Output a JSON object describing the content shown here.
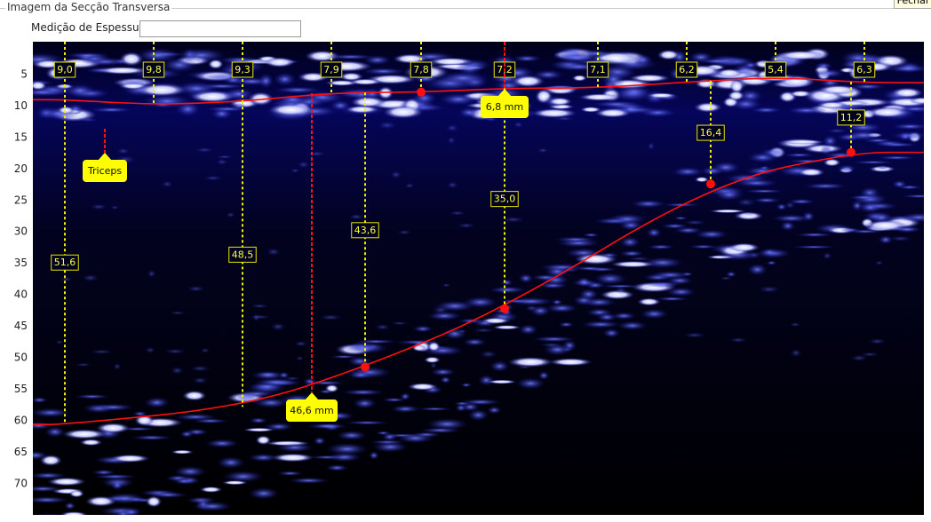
{
  "window": {
    "title": "Imagem da Secção Transversa",
    "close_button": "Fechar"
  },
  "form": {
    "label": "Medição de Espessura"
  },
  "image": {
    "y_axis": {
      "ticks": [
        5,
        10,
        15,
        20,
        25,
        30,
        35,
        40,
        45,
        50,
        55,
        60,
        65,
        70
      ]
    },
    "top_measurements": [
      {
        "value": 9.0,
        "label": "9,0"
      },
      {
        "value": 9.8,
        "label": "9,8"
      },
      {
        "value": 9.3,
        "label": "9,3"
      },
      {
        "value": 7.9,
        "label": "7,9"
      },
      {
        "value": 7.8,
        "label": "7,8"
      },
      {
        "value": 7.2,
        "label": "7,2"
      },
      {
        "value": 7.1,
        "label": "7,1"
      },
      {
        "value": 6.2,
        "label": "6,2"
      },
      {
        "value": 5.4,
        "label": "5,4"
      },
      {
        "value": 6.3,
        "label": "6,3"
      }
    ],
    "depth_measurements": [
      {
        "value": 51.6,
        "label": "51,6"
      },
      {
        "value": 48.5,
        "label": "48,5"
      },
      {
        "value": 43.6,
        "label": "43,6"
      },
      {
        "value": 35.0,
        "label": "35,0"
      },
      {
        "value": 16.4,
        "label": "16,4"
      },
      {
        "value": 11.2,
        "label": "11,2"
      }
    ],
    "callouts": {
      "muscle": "Triceps",
      "top": "6,8 mm",
      "bottom": "46,6 mm"
    }
  }
}
